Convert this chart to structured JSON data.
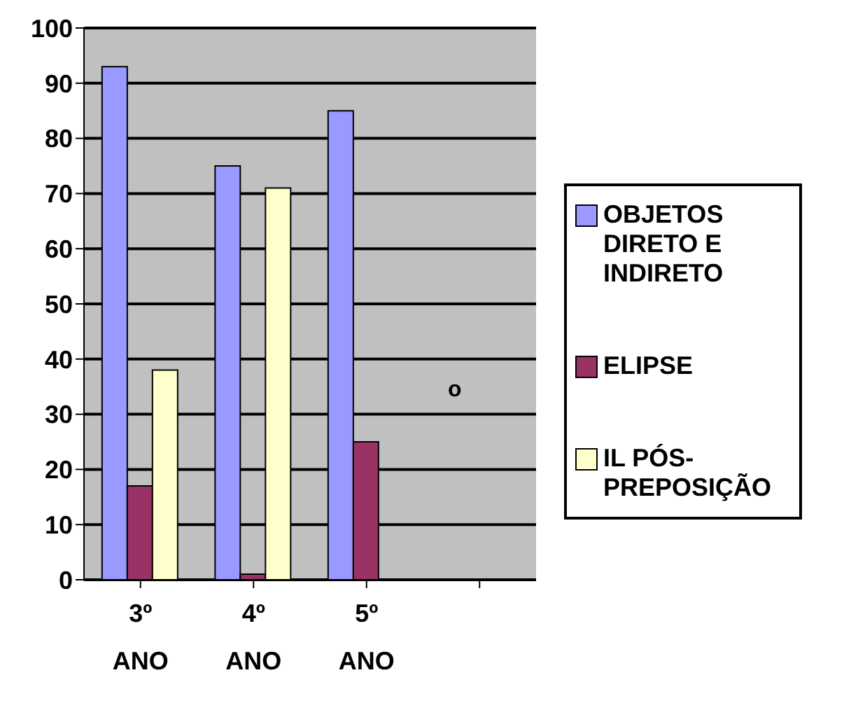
{
  "chart_data": {
    "type": "bar",
    "categories": [
      "3º ANO",
      "4º ANO",
      "5º ANO",
      null
    ],
    "series": [
      {
        "name": "OBJETOS DIRETO E INDIRETO",
        "color": "#9999ff",
        "values": [
          93,
          75,
          85,
          null
        ]
      },
      {
        "name": "ELIPSE",
        "color": "#993366",
        "values": [
          17,
          1,
          25,
          null
        ]
      },
      {
        "name": "IL PÓS-PREPOSIÇÃO",
        "color": "#ffffcc",
        "values": [
          38,
          71,
          0,
          null
        ]
      }
    ],
    "ylim": [
      0,
      100
    ],
    "yticks": [
      0,
      10,
      20,
      30,
      40,
      50,
      60,
      70,
      80,
      90,
      100
    ],
    "grid": "y",
    "legend": "right",
    "annotations": [
      "o"
    ]
  }
}
